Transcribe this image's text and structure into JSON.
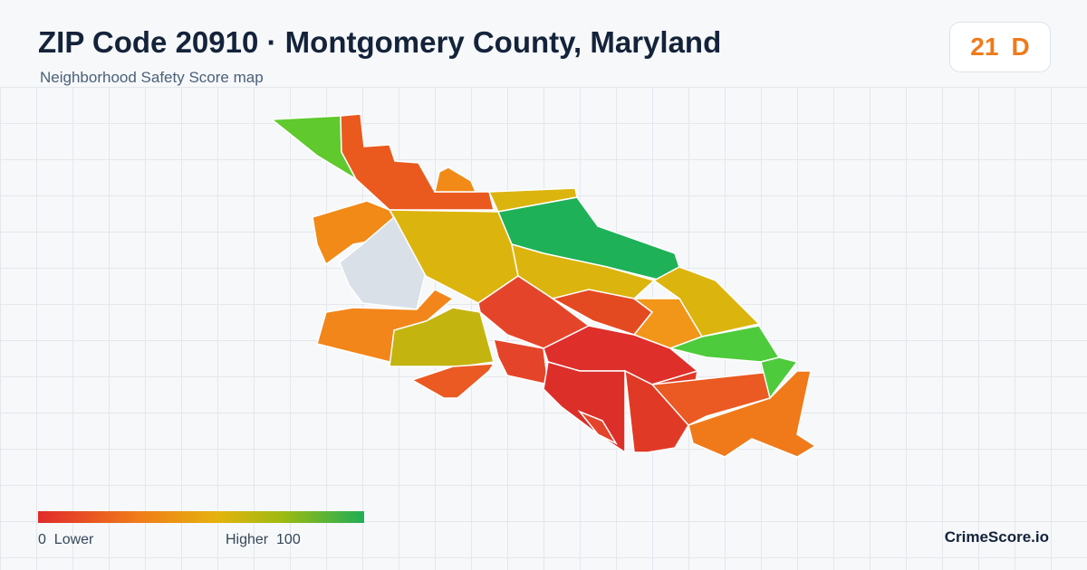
{
  "header": {
    "title": "ZIP Code 20910 · Montgomery County, Maryland",
    "subtitle": "Neighborhood Safety Score map"
  },
  "score": {
    "value": 21,
    "grade": "D"
  },
  "legend": {
    "min": 0,
    "min_label": "Lower",
    "max_label": "Higher",
    "max": 100
  },
  "brand": "CrimeScore.io"
}
